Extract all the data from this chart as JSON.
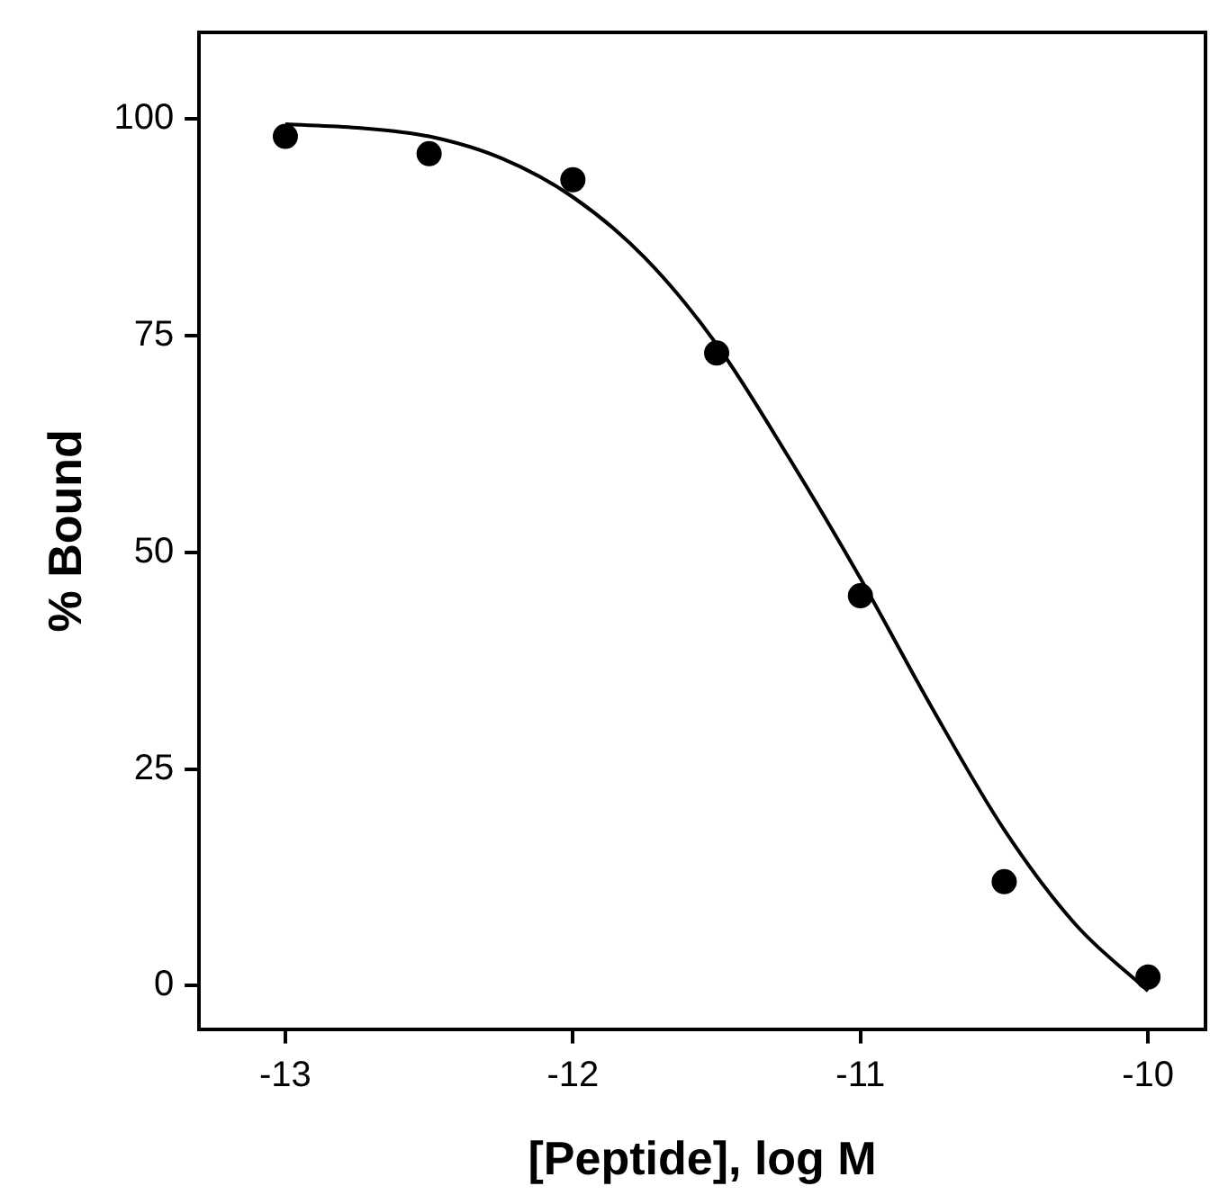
{
  "chart_data": {
    "type": "scatter",
    "xlabel": "[Peptide], log M",
    "ylabel": "% Bound",
    "xlim": [
      -13.3,
      -9.8
    ],
    "ylim": [
      -5,
      110
    ],
    "xticks": [
      -13,
      -12,
      -11,
      -10
    ],
    "yticks": [
      0,
      25,
      50,
      75,
      100
    ],
    "grid": false,
    "legend": false,
    "marker": "circle",
    "series": [
      {
        "type": "scatter",
        "color": "#000000",
        "x": [
          -13,
          -12.5,
          -12,
          -11.5,
          -11,
          -10.5,
          -10
        ],
        "values": [
          98,
          96,
          93,
          73,
          45,
          12,
          1
        ]
      },
      {
        "type": "line",
        "color": "#000000",
        "marker": "none",
        "line_style": "solid",
        "x": [
          -13,
          -12.75,
          -12.5,
          -12.25,
          -12,
          -11.75,
          -11.5,
          -11.25,
          -11,
          -10.75,
          -10.5,
          -10.25,
          -10
        ],
        "values": [
          99.4,
          99,
          98,
          95.5,
          91,
          84,
          74,
          61,
          47,
          32,
          18,
          7,
          -0.6
        ]
      }
    ]
  }
}
